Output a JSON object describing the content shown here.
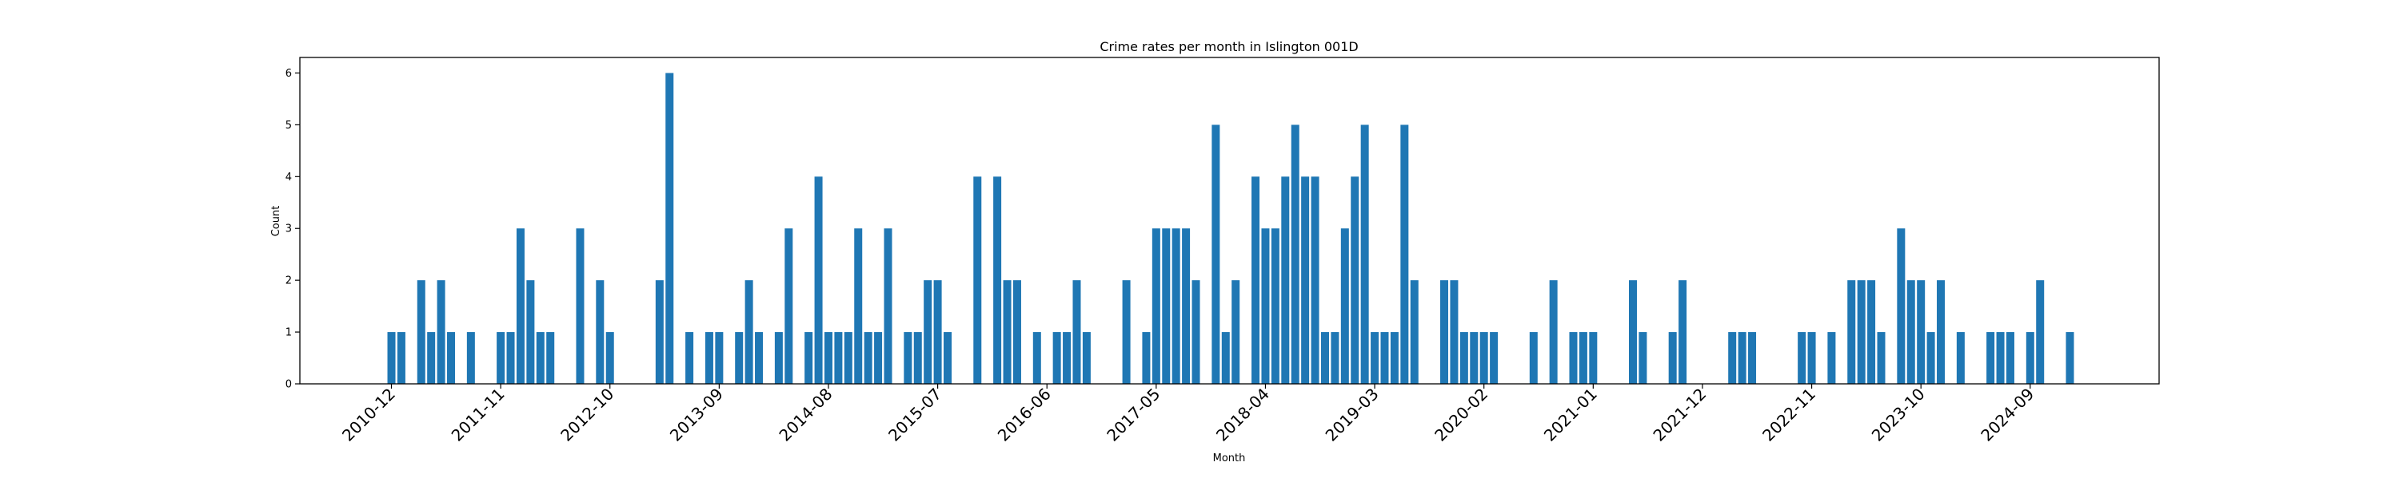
{
  "chart_data": {
    "type": "bar",
    "title": "Crime rates per month in Islington 001D",
    "xlabel": "Month",
    "ylabel": "Count",
    "ylim": [
      0,
      6.3
    ],
    "yticks": [
      0,
      1,
      2,
      3,
      4,
      5,
      6
    ],
    "xticks": [
      "2010-12",
      "2011-11",
      "2012-10",
      "2013-09",
      "2014-08",
      "2015-07",
      "2016-06",
      "2017-05",
      "2018-04",
      "2019-03",
      "2020-02",
      "2021-01",
      "2021-12",
      "2022-11",
      "2023-10",
      "2024-09"
    ],
    "x": [
      "2010-12",
      "2011-01",
      "2011-03",
      "2011-04",
      "2011-05",
      "2011-06",
      "2011-08",
      "2011-11",
      "2011-12",
      "2012-01",
      "2012-02",
      "2012-03",
      "2012-04",
      "2012-07",
      "2012-09",
      "2012-10",
      "2013-03",
      "2013-04",
      "2013-06",
      "2013-08",
      "2013-09",
      "2013-11",
      "2013-12",
      "2014-01",
      "2014-03",
      "2014-04",
      "2014-06",
      "2014-07",
      "2014-08",
      "2014-09",
      "2014-10",
      "2014-11",
      "2014-12",
      "2015-01",
      "2015-02",
      "2015-04",
      "2015-05",
      "2015-06",
      "2015-07",
      "2015-08",
      "2015-11",
      "2016-01",
      "2016-02",
      "2016-03",
      "2016-05",
      "2016-07",
      "2016-08",
      "2016-09",
      "2016-10",
      "2017-02",
      "2017-04",
      "2017-05",
      "2017-06",
      "2017-07",
      "2017-08",
      "2017-09",
      "2017-11",
      "2017-12",
      "2018-01",
      "2018-03",
      "2018-04",
      "2018-05",
      "2018-06",
      "2018-07",
      "2018-08",
      "2018-09",
      "2018-10",
      "2018-11",
      "2018-12",
      "2019-01",
      "2019-02",
      "2019-03",
      "2019-04",
      "2019-05",
      "2019-06",
      "2019-07",
      "2019-10",
      "2019-11",
      "2019-12",
      "2020-01",
      "2020-02",
      "2020-03",
      "2020-07",
      "2020-09",
      "2020-11",
      "2020-12",
      "2021-01",
      "2021-05",
      "2021-06",
      "2021-09",
      "2021-10",
      "2022-03",
      "2022-04",
      "2022-05",
      "2022-10",
      "2022-11",
      "2023-01",
      "2023-03",
      "2023-04",
      "2023-05",
      "2023-06",
      "2023-08",
      "2023-09",
      "2023-10",
      "2023-11",
      "2023-12",
      "2024-02",
      "2024-05",
      "2024-06",
      "2024-07",
      "2024-09",
      "2024-10",
      "2025-01"
    ],
    "values": [
      1,
      1,
      2,
      1,
      2,
      1,
      1,
      1,
      1,
      3,
      2,
      1,
      1,
      3,
      2,
      1,
      2,
      6,
      1,
      1,
      1,
      1,
      2,
      1,
      1,
      3,
      1,
      4,
      1,
      1,
      1,
      3,
      1,
      1,
      3,
      1,
      1,
      2,
      2,
      1,
      4,
      4,
      2,
      2,
      1,
      1,
      1,
      2,
      1,
      2,
      1,
      3,
      3,
      3,
      3,
      2,
      5,
      1,
      2,
      4,
      3,
      3,
      4,
      5,
      4,
      4,
      1,
      1,
      3,
      4,
      5,
      1,
      1,
      1,
      5,
      2,
      2,
      2,
      1,
      1,
      1,
      1,
      1,
      2,
      1,
      1,
      1,
      2,
      1,
      1,
      2,
      1,
      1,
      1,
      1,
      1,
      1,
      2,
      2,
      2,
      1,
      3,
      2,
      2,
      1,
      2,
      1,
      1,
      1,
      1,
      1,
      2,
      1
    ],
    "bar_color": "#1f77b4",
    "grid": false,
    "legend": "none"
  }
}
